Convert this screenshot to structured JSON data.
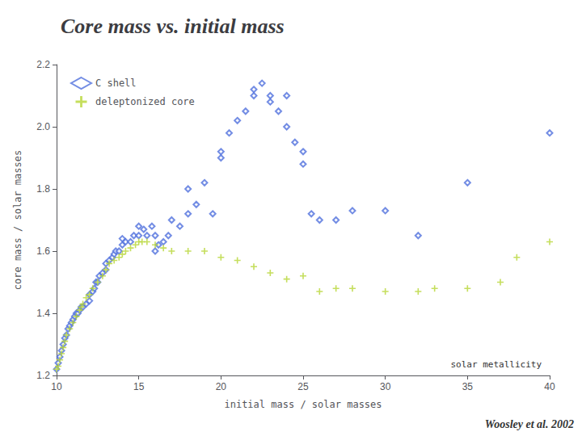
{
  "chart_data": {
    "type": "scatter",
    "title": "Core mass vs. initial mass",
    "xlabel": "initial mass / solar masses",
    "ylabel": "core mass / solar masses",
    "annotations": [
      "solar metallicity",
      "Woosley et al. 2002"
    ],
    "xlim": [
      10,
      40
    ],
    "ylim": [
      1.2,
      2.2
    ],
    "xticks": [
      10,
      15,
      20,
      25,
      30,
      35,
      40
    ],
    "yticks": [
      1.2,
      1.4,
      1.6,
      1.8,
      {
        "value": 2.0,
        "label": "2.0"
      },
      2.2
    ],
    "grid": false,
    "legend": "upper left",
    "series": [
      {
        "name": "C shell",
        "marker": "diamond",
        "x": [
          10.0,
          10.1,
          10.2,
          10.3,
          10.4,
          10.5,
          10.6,
          10.7,
          10.8,
          10.9,
          11.0,
          11.1,
          11.2,
          11.3,
          11.4,
          11.5,
          11.6,
          11.8,
          12.0,
          12.0,
          12.2,
          12.3,
          12.4,
          12.5,
          12.6,
          12.8,
          13.0,
          13.0,
          13.2,
          13.4,
          13.5,
          13.6,
          13.8,
          14.0,
          14.0,
          14.2,
          14.5,
          14.7,
          15.0,
          15.0,
          15.3,
          15.5,
          15.8,
          16.0,
          16.0,
          16.2,
          16.5,
          16.8,
          17.0,
          17.5,
          18.0,
          18.0,
          18.5,
          19.0,
          19.5,
          20.0,
          20.0,
          20.5,
          21.0,
          21.5,
          22.0,
          22.0,
          22.5,
          23.0,
          23.0,
          23.5,
          24.0,
          24.0,
          24.5,
          25.0,
          25.0,
          25.5,
          26.0,
          27.0,
          28.0,
          30.0,
          32.0,
          35.0,
          40.0
        ],
        "values": [
          1.22,
          1.24,
          1.26,
          1.28,
          1.3,
          1.32,
          1.33,
          1.35,
          1.36,
          1.37,
          1.38,
          1.39,
          1.4,
          1.4,
          1.41,
          1.42,
          1.42,
          1.43,
          1.44,
          1.46,
          1.47,
          1.48,
          1.5,
          1.5,
          1.52,
          1.53,
          1.54,
          1.56,
          1.57,
          1.58,
          1.59,
          1.6,
          1.6,
          1.62,
          1.64,
          1.63,
          1.63,
          1.65,
          1.65,
          1.68,
          1.67,
          1.65,
          1.68,
          1.65,
          1.6,
          1.62,
          1.63,
          1.65,
          1.7,
          1.68,
          1.72,
          1.8,
          1.75,
          1.82,
          1.72,
          1.9,
          1.92,
          1.98,
          2.02,
          2.05,
          2.1,
          2.12,
          2.14,
          2.1,
          2.08,
          2.05,
          2.1,
          2.0,
          1.95,
          1.92,
          1.88,
          1.72,
          1.7,
          1.7,
          1.73,
          1.73,
          1.65,
          1.82,
          1.98
        ]
      },
      {
        "name": "deleptonized core",
        "marker": "plus",
        "x": [
          10.0,
          10.1,
          10.2,
          10.3,
          10.4,
          10.5,
          10.6,
          10.8,
          11.0,
          11.2,
          11.4,
          11.5,
          11.6,
          11.8,
          12.0,
          12.2,
          12.5,
          12.8,
          13.0,
          13.2,
          13.5,
          13.8,
          14.0,
          14.2,
          14.5,
          14.8,
          15.0,
          15.2,
          15.5,
          16.0,
          16.5,
          17.0,
          18.0,
          19.0,
          20.0,
          21.0,
          22.0,
          23.0,
          24.0,
          25.0,
          26.0,
          27.0,
          28.0,
          30.0,
          32.0,
          33.0,
          35.0,
          37.0,
          38.0,
          40.0
        ],
        "values": [
          1.22,
          1.23,
          1.25,
          1.27,
          1.29,
          1.31,
          1.33,
          1.35,
          1.37,
          1.39,
          1.41,
          1.42,
          1.43,
          1.45,
          1.46,
          1.48,
          1.5,
          1.52,
          1.54,
          1.56,
          1.57,
          1.58,
          1.59,
          1.6,
          1.61,
          1.62,
          1.63,
          1.63,
          1.63,
          1.62,
          1.61,
          1.6,
          1.6,
          1.6,
          1.58,
          1.57,
          1.55,
          1.53,
          1.51,
          1.52,
          1.47,
          1.48,
          1.48,
          1.47,
          1.47,
          1.48,
          1.48,
          1.5,
          1.58,
          1.63
        ]
      }
    ]
  }
}
